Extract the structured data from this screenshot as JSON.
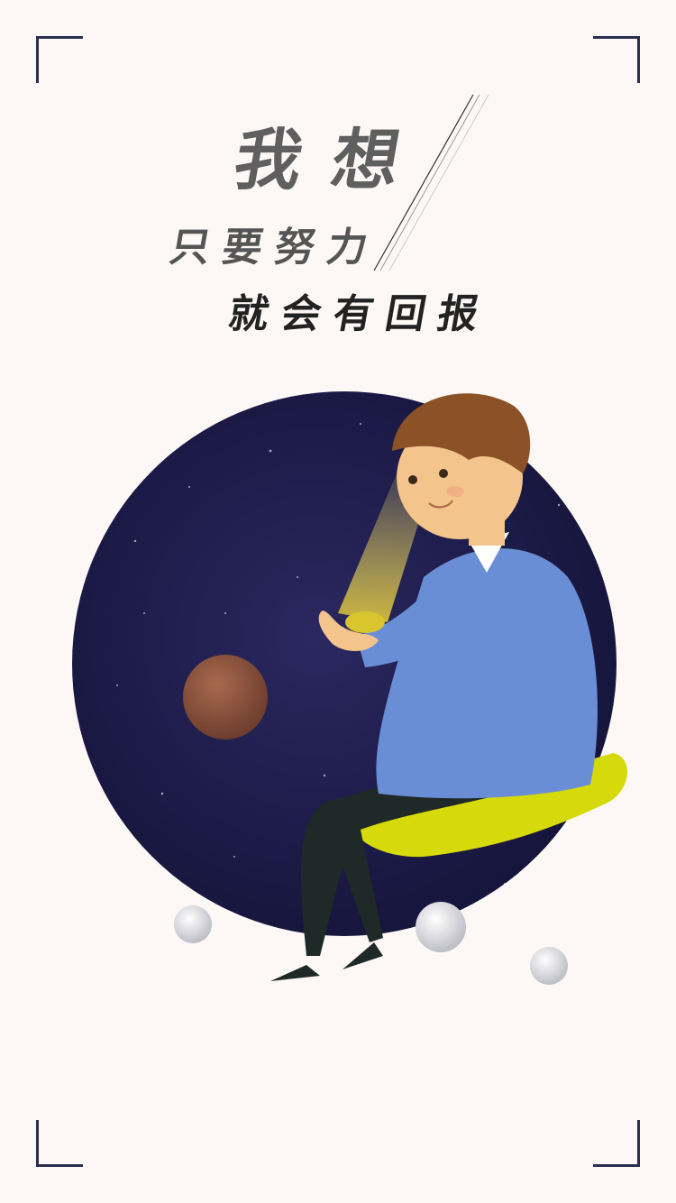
{
  "headline": {
    "line1": "我想",
    "line2": "只要努力",
    "line3": "就会有回报"
  },
  "colors": {
    "background": "#fdf7f5",
    "frame": "#2b2f52",
    "space": "#1c1a42",
    "sweater": "#6a8ed6",
    "seat": "#d7da0a",
    "hair": "#8a5226"
  },
  "icons": [
    "corner-frame-icon",
    "planet-icon",
    "moon-icon"
  ]
}
